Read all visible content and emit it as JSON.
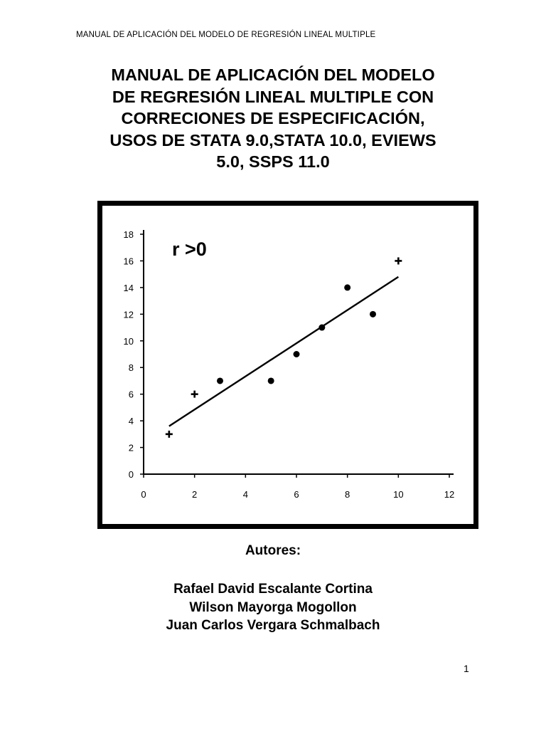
{
  "header": {
    "running_title": "MANUAL DE APLICACIÓN DEL MODELO DE REGRESIÓN LINEAL MULTIPLE"
  },
  "document": {
    "title_lines": [
      "MANUAL DE APLICACIÓN DEL MODELO",
      "DE REGRESIÓN LINEAL MULTIPLE CON",
      "CORRECIONES DE ESPECIFICACIÓN,",
      "USOS DE STATA 9.0,STATA 10.0, EVIEWS",
      "5.0, SSPS 11.0"
    ],
    "authors_heading": "Autores:",
    "authors": [
      "Rafael David Escalante Cortina",
      "Wilson Mayorga Mogollon",
      "Juan Carlos Vergara Schmalbach"
    ],
    "page_number": "1"
  },
  "chart_data": {
    "type": "scatter",
    "annotation": "r >0",
    "x_ticks": [
      "0",
      "2",
      "4",
      "6",
      "8",
      "10",
      "12"
    ],
    "y_ticks": [
      "0",
      "2",
      "4",
      "6",
      "8",
      "10",
      "12",
      "14",
      "16",
      "18"
    ],
    "xlim": [
      0,
      12
    ],
    "ylim": [
      0,
      18
    ],
    "points": [
      {
        "x": 1,
        "y": 3,
        "marker": "cross"
      },
      {
        "x": 2,
        "y": 6,
        "marker": "cross"
      },
      {
        "x": 3,
        "y": 7,
        "marker": "dot"
      },
      {
        "x": 5,
        "y": 7,
        "marker": "dot"
      },
      {
        "x": 6,
        "y": 9,
        "marker": "dot"
      },
      {
        "x": 7,
        "y": 11,
        "marker": "dot"
      },
      {
        "x": 8,
        "y": 14,
        "marker": "dot"
      },
      {
        "x": 9,
        "y": 12,
        "marker": "dot"
      },
      {
        "x": 10,
        "y": 16,
        "marker": "cross"
      }
    ],
    "trendline": {
      "x": [
        1,
        10
      ],
      "y": [
        3.6,
        14.8
      ]
    },
    "grid": false,
    "colors": {
      "marks": "#000000",
      "background": "#ffffff"
    }
  }
}
